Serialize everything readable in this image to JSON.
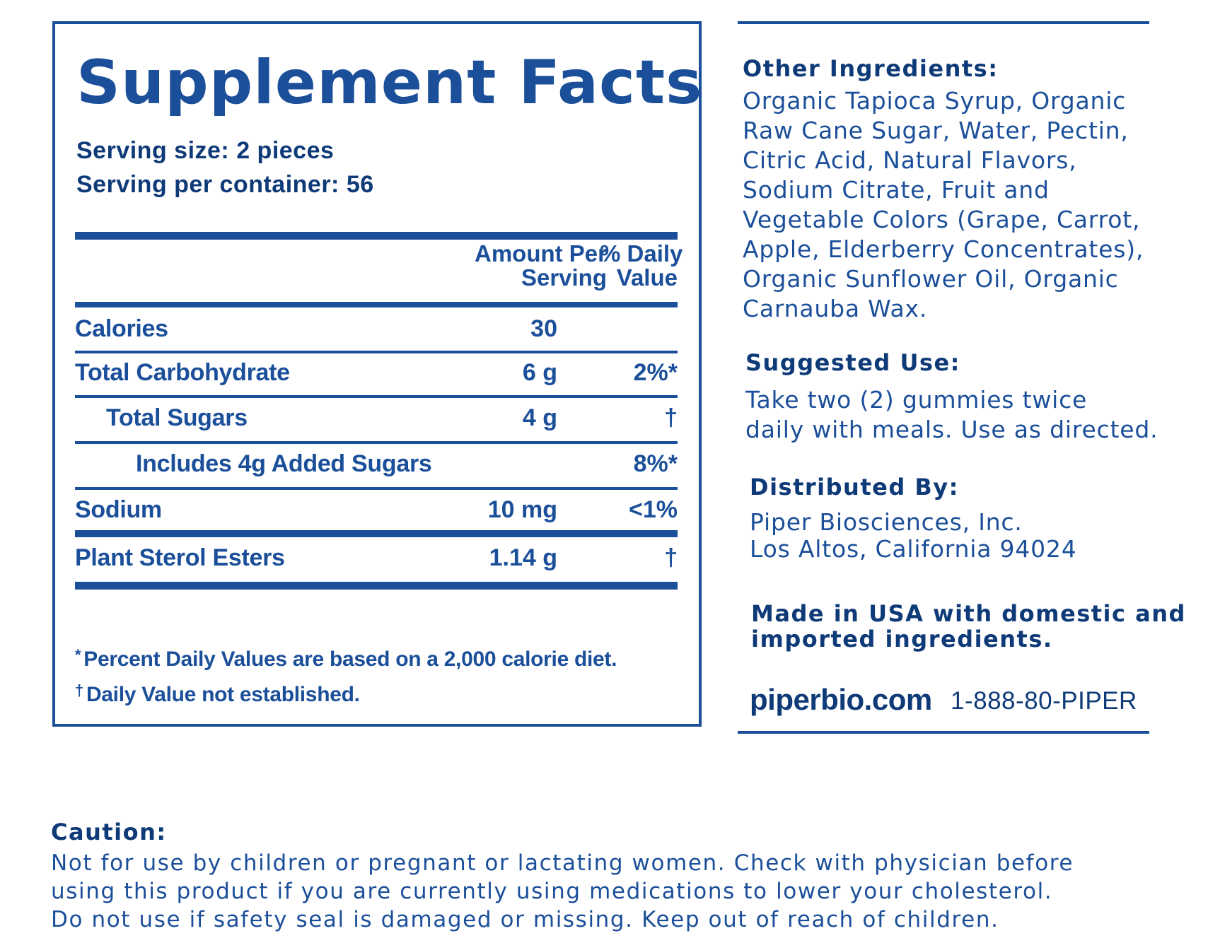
{
  "supplement_facts": {
    "title": "Supplement Facts",
    "serving_size": "Serving size: 2 pieces",
    "servings_per_container": "Serving per container: 56",
    "columns": {
      "amount_line1": "Amount Per",
      "amount_line2": "Serving",
      "dv_line1": "% Daily",
      "dv_line2": "Value"
    },
    "rows": [
      {
        "name": "Calories",
        "amount": "30",
        "dv": ""
      },
      {
        "name": "Total Carbohydrate",
        "amount": "6 g",
        "dv": "2%*"
      },
      {
        "name": "Total Sugars",
        "amount": "4 g",
        "dv": "†"
      },
      {
        "name": "Includes 4g Added Sugars",
        "amount": "",
        "dv": "8%*"
      },
      {
        "name": "Sodium",
        "amount": "10 mg",
        "dv": "<1%"
      },
      {
        "name": "Plant Sterol Esters",
        "amount": "1.14 g",
        "dv": "†"
      }
    ],
    "footnotes": [
      {
        "mark": "*",
        "text": "Percent Daily Values are based on a 2,000 calorie diet."
      },
      {
        "mark": "†",
        "text": "Daily Value not established."
      }
    ]
  },
  "other_ingredients": {
    "heading": "Other Ingredients:",
    "lines": [
      "Organic Tapioca Syrup, Organic",
      "Raw Cane Sugar, Water, Pectin,",
      "Citric Acid, Natural Flavors,",
      "Sodium Citrate, Fruit and",
      "Vegetable Colors (Grape, Carrot,",
      "Apple, Elderberry Concentrates),",
      "Organic Sunflower Oil, Organic",
      "Carnauba Wax."
    ]
  },
  "suggested_use": {
    "heading": "Suggested Use:",
    "lines": [
      "Take two (2) gummies twice",
      "daily with meals. Use as directed."
    ]
  },
  "distributed_by": {
    "heading": "Distributed By:",
    "lines": [
      "Piper Biosciences, Inc.",
      "Los Altos, California 94024"
    ]
  },
  "made_in": {
    "lines": [
      "Made in USA with domestic and",
      "imported ingredients."
    ]
  },
  "contact": {
    "website": "piperbio.com",
    "phone": "1-888-80-PIPER"
  },
  "caution": {
    "heading": "Caution:",
    "lines": [
      "Not for use by children or pregnant or lactating women. Check with physician before",
      "using this product if you are currently using medications to lower your cholesterol.",
      "Do not use if safety seal is damaged or missing. Keep out of reach of children."
    ]
  },
  "colors": {
    "primary_blue": "#1b4f9a",
    "dark_blue": "#0e3a78"
  }
}
